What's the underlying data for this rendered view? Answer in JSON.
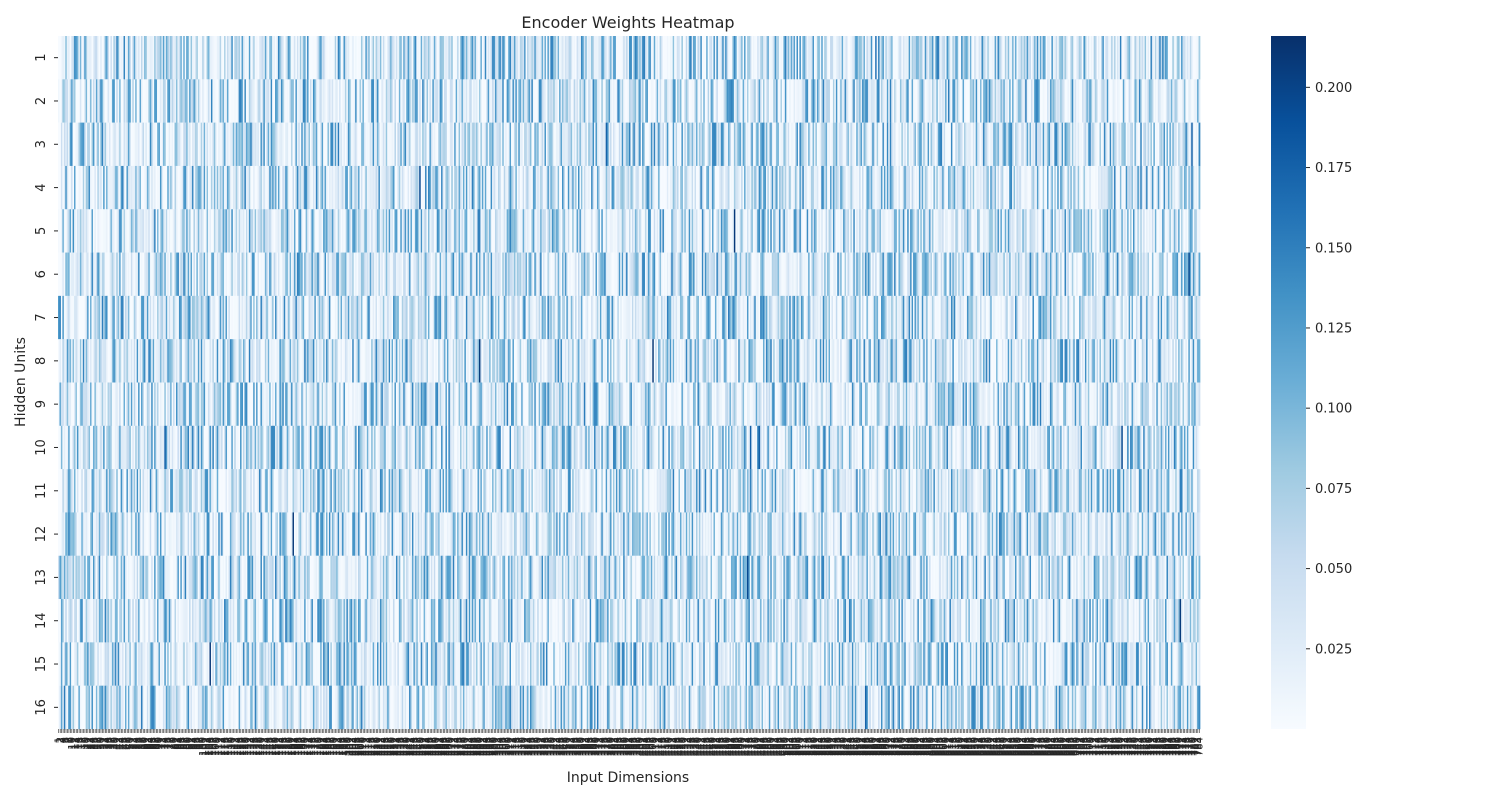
{
  "chart_data": {
    "type": "heatmap",
    "title": "Encoder Weights Heatmap",
    "xlabel": "Input Dimensions",
    "ylabel": "Hidden Units",
    "rows": [
      "1",
      "2",
      "3",
      "4",
      "5",
      "6",
      "7",
      "8",
      "9",
      "10",
      "11",
      "12",
      "13",
      "14",
      "15",
      "16"
    ],
    "n_columns": 784,
    "colormap": [
      "#f7fbff",
      "#deebf7",
      "#c6dbef",
      "#9ecae1",
      "#6baed6",
      "#4292c6",
      "#2171b5",
      "#08519c",
      "#08306b"
    ],
    "colorbar": {
      "range": [
        0.0,
        0.216
      ],
      "ticks": [
        "0.025",
        "0.050",
        "0.075",
        "0.100",
        "0.125",
        "0.150",
        "0.175",
        "0.200"
      ],
      "tick_values": [
        0.025,
        0.05,
        0.075,
        0.1,
        0.125,
        0.15,
        0.175,
        0.2
      ]
    },
    "value_distribution": {
      "approx_mean": 0.04,
      "approx_max": 0.216,
      "note": "per-cell values are dense and not individually readable"
    }
  }
}
